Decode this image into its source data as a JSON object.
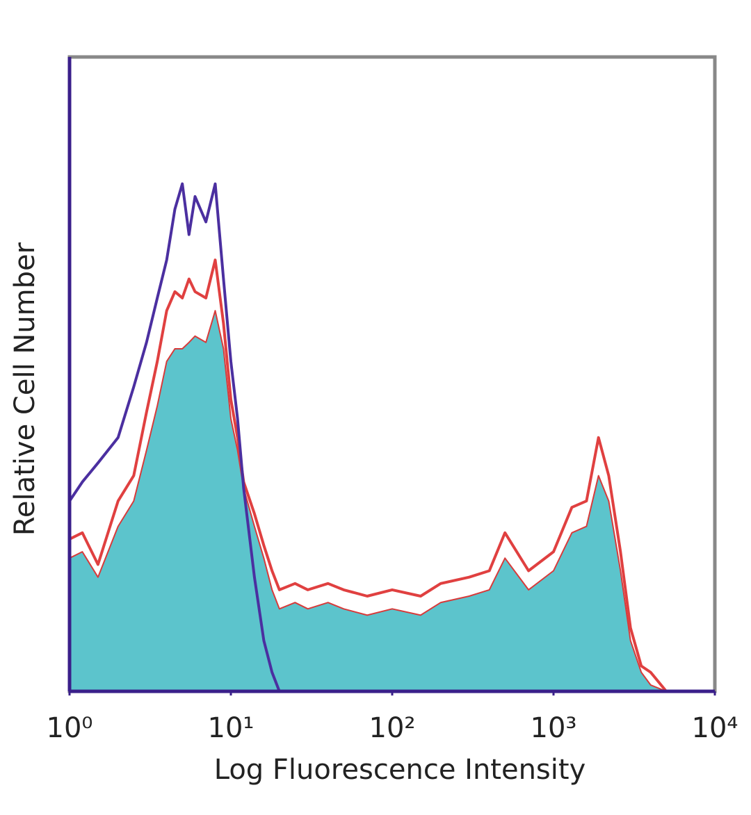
{
  "chart_data": {
    "type": "line",
    "xlabel": "Log Fluorescence Intensity",
    "ylabel": "Relative Cell Number",
    "xscale": "log",
    "xlim": [
      1,
      10000
    ],
    "xticks": [
      {
        "value": 1,
        "label": "10⁰"
      },
      {
        "value": 10,
        "label": "10¹"
      },
      {
        "value": 100,
        "label": "10²"
      },
      {
        "value": 1000,
        "label": "10³"
      },
      {
        "value": 10000,
        "label": "10⁴"
      }
    ],
    "ylim": [
      0,
      100
    ],
    "x": [
      1,
      1.2,
      1.5,
      2,
      2.5,
      3,
      3.5,
      4,
      4.5,
      5,
      5.5,
      6,
      7,
      8,
      9,
      10,
      11,
      12,
      14,
      16,
      18,
      20,
      25,
      30,
      40,
      50,
      70,
      100,
      150,
      200,
      300,
      400,
      500,
      700,
      1000,
      1300,
      1600,
      1900,
      2200,
      2600,
      3000,
      3500,
      4000,
      5000,
      10000
    ],
    "series": [
      {
        "color": "#d83a3a",
        "fill": "#5cc4cc",
        "values": [
          21,
          22,
          18,
          26,
          30,
          38,
          45,
          52,
          54,
          54,
          55,
          56,
          55,
          60,
          54,
          43,
          38,
          32,
          26,
          21,
          16,
          13,
          14,
          13,
          14,
          13,
          12,
          13,
          12,
          14,
          15,
          16,
          21,
          16,
          19,
          25,
          26,
          34,
          30,
          19,
          8,
          3,
          1,
          0,
          0
        ]
      },
      {
        "color": "#e04040",
        "values": [
          24,
          25,
          20,
          30,
          34,
          44,
          52,
          60,
          63,
          62,
          65,
          63,
          62,
          68,
          58,
          46,
          40,
          33,
          28,
          23,
          19,
          16,
          17,
          16,
          17,
          16,
          15,
          16,
          15,
          17,
          18,
          19,
          25,
          19,
          22,
          29,
          30,
          40,
          34,
          22,
          10,
          4,
          3,
          0,
          0
        ]
      },
      {
        "color": "#4b2fa0",
        "values": [
          30,
          33,
          36,
          40,
          48,
          55,
          62,
          68,
          76,
          80,
          72,
          78,
          74,
          80,
          65,
          52,
          43,
          32,
          18,
          8,
          3,
          0,
          0,
          0,
          0,
          0,
          0,
          0,
          0,
          0,
          0,
          0,
          0,
          0,
          0,
          0,
          0,
          0,
          0,
          0,
          0,
          0,
          0,
          0,
          0
        ]
      }
    ]
  }
}
